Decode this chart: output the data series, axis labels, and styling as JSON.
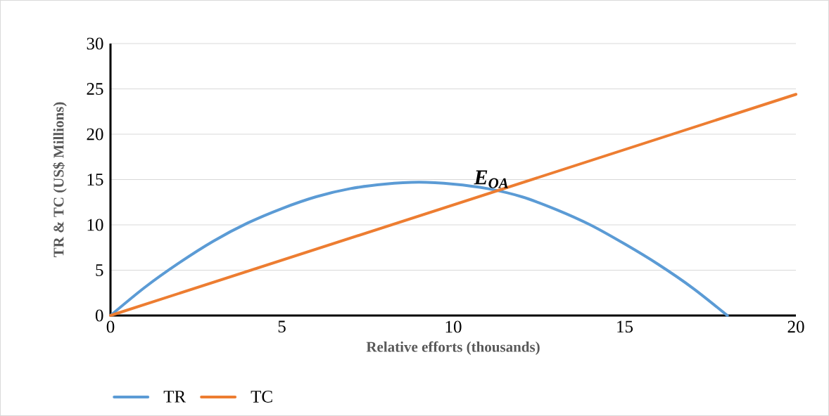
{
  "chart_data": {
    "type": "line",
    "xlabel": "Relative efforts (thousands)",
    "ylabel": "TR & TC (US$ Millions)",
    "xlim": [
      0,
      20
    ],
    "xticks": [
      0,
      5,
      10,
      15,
      20
    ],
    "ylim": [
      0,
      30
    ],
    "yticks": [
      0,
      5,
      10,
      15,
      20,
      25,
      30
    ],
    "grid": "y",
    "legend": "bottom",
    "marker": "none",
    "line_style": "solid",
    "annotations": [
      {
        "text": "E$_{OA}$",
        "x": 11.2,
        "y": 13.7
      }
    ],
    "series": [
      {
        "name": "TR",
        "color": "#5b9bd5",
        "x": [
          0,
          1,
          2,
          3,
          4,
          5,
          6,
          7,
          8,
          9,
          10,
          11,
          12,
          13,
          14,
          15,
          16,
          17,
          18
        ],
        "values": [
          0,
          3.1,
          5.8,
          8.2,
          10.2,
          11.8,
          13.1,
          14.0,
          14.5,
          14.7,
          14.5,
          14.0,
          13.1,
          11.7,
          10.0,
          7.9,
          5.6,
          3.0,
          0
        ]
      },
      {
        "name": "TC",
        "color": "#ed7d31",
        "x": [
          0,
          20
        ],
        "values": [
          0,
          24.4
        ]
      }
    ]
  }
}
